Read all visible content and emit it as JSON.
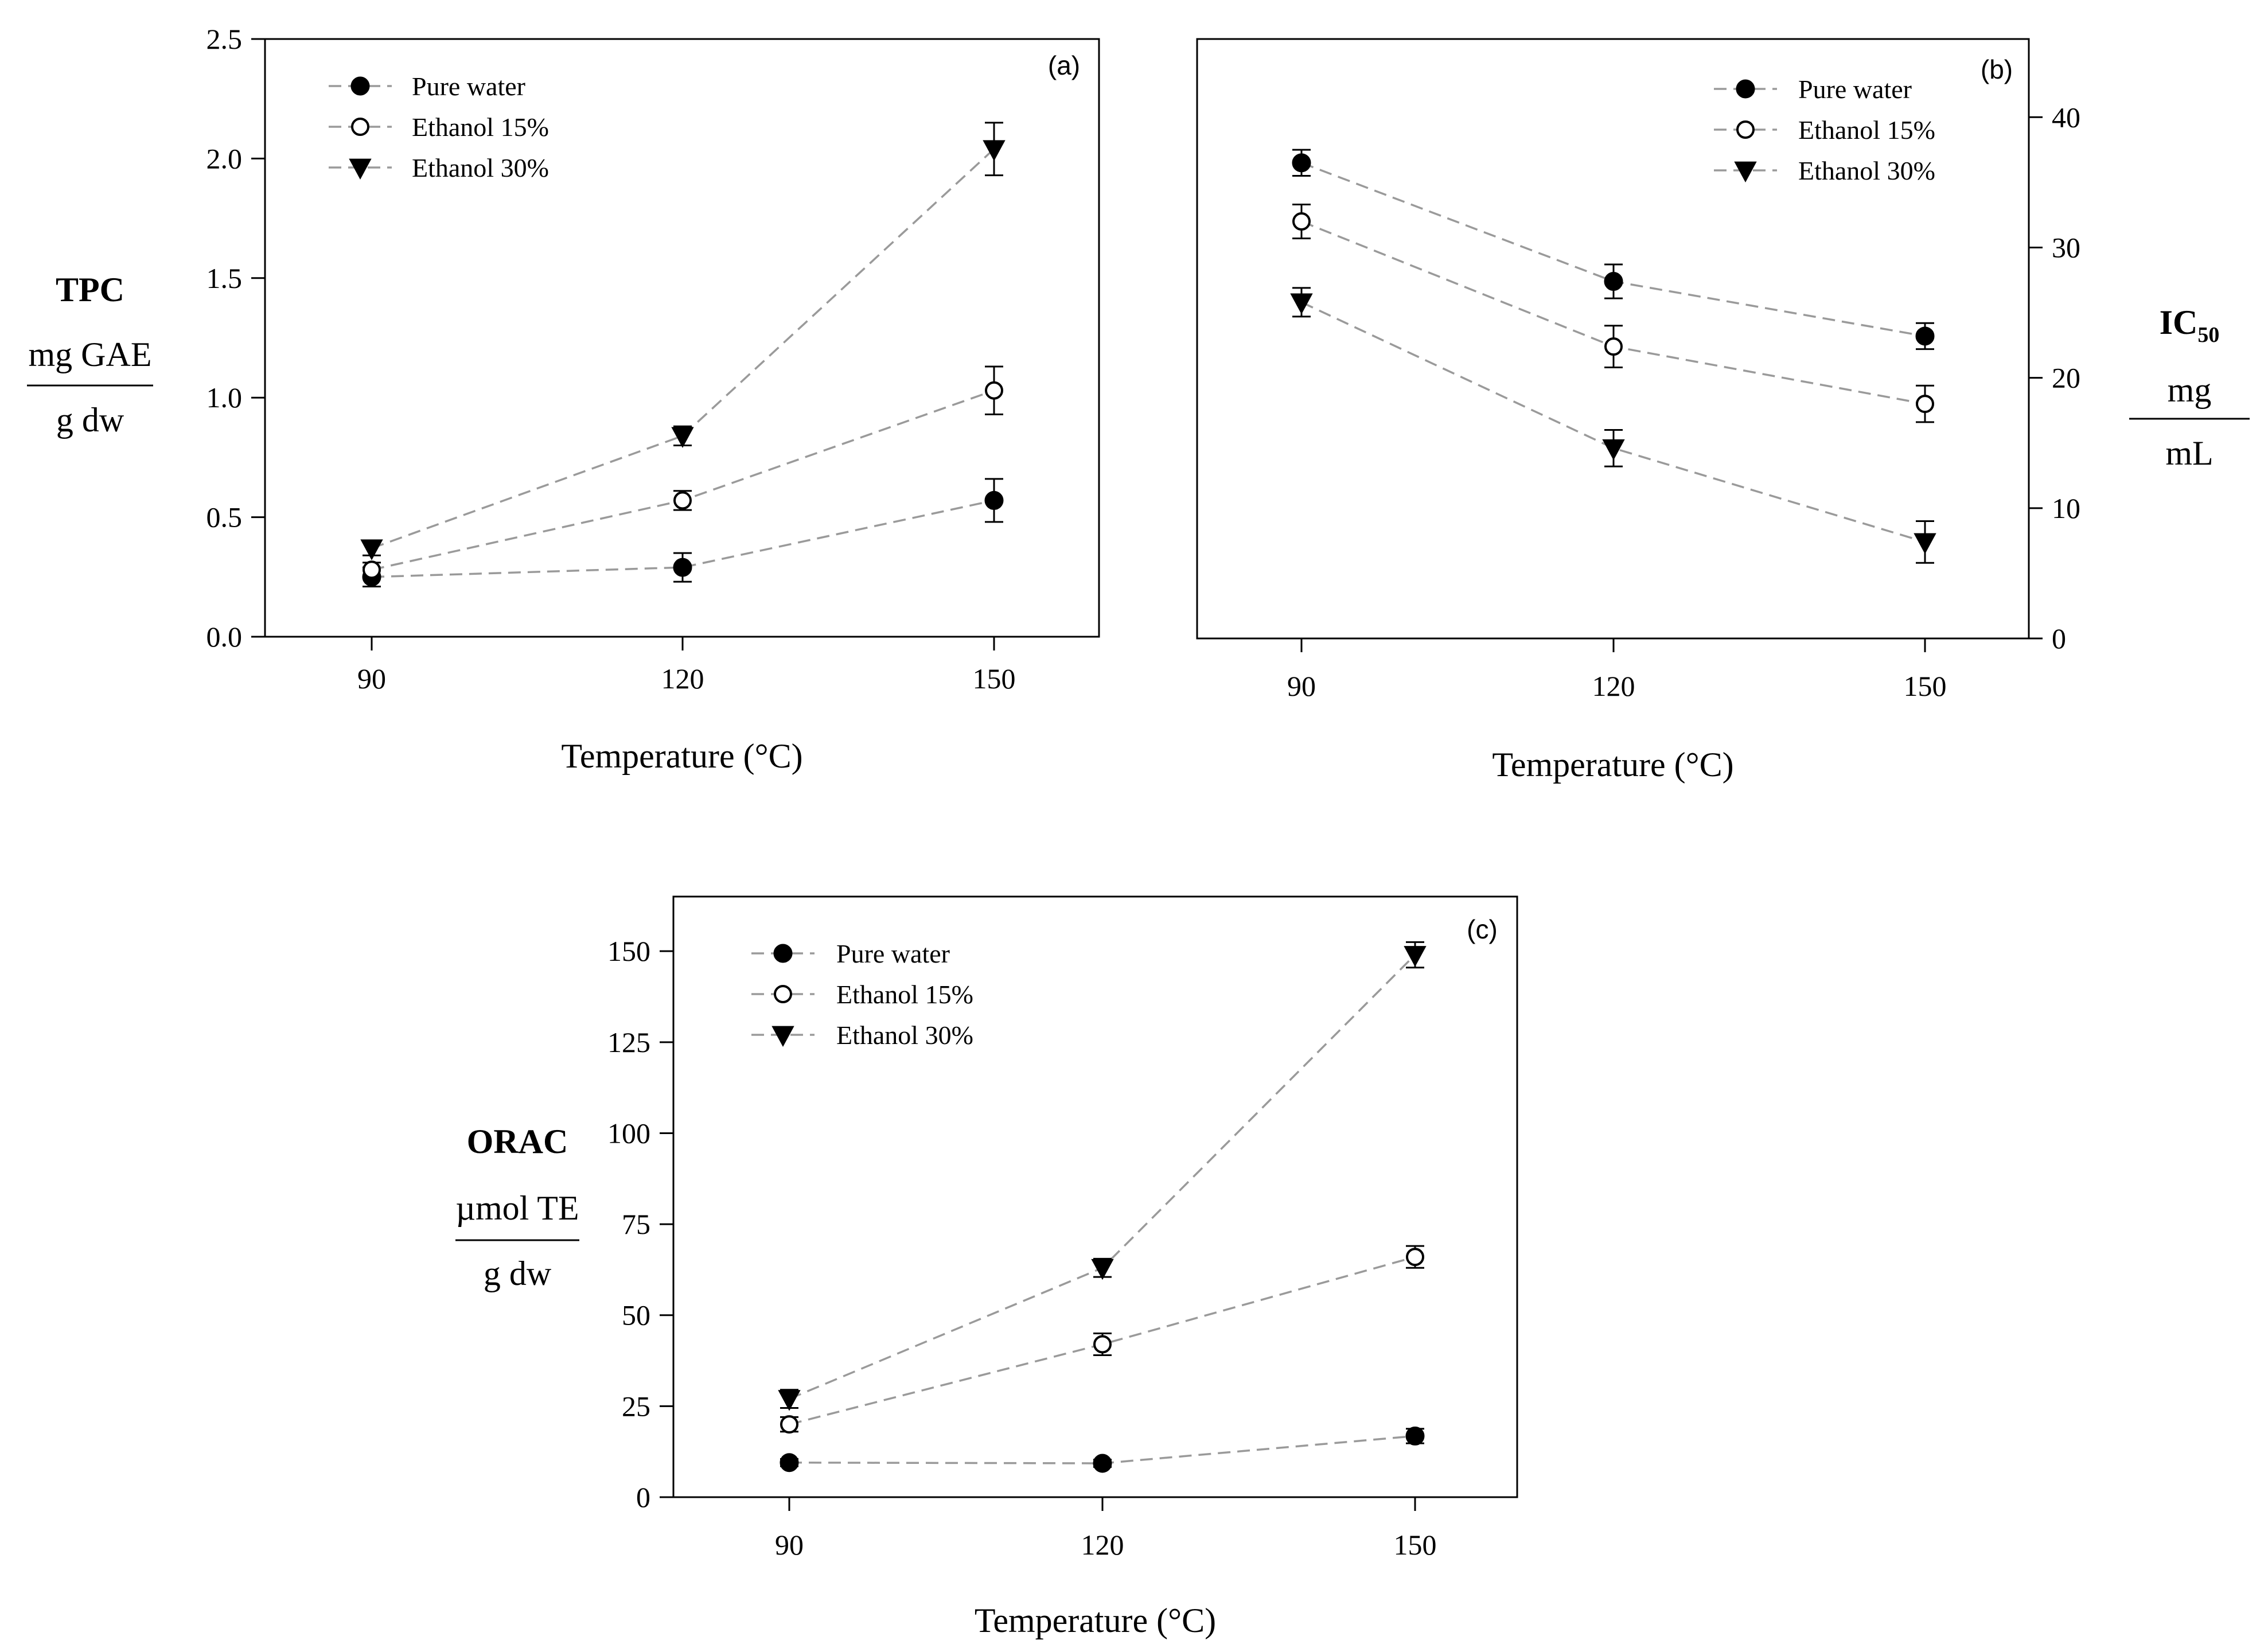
{
  "chart_data": [
    {
      "type": "line",
      "panel_label": "(a)",
      "title": "",
      "xlabel": "Temperature (°C)",
      "ylabel": {
        "top": "TPC",
        "numerator": "mg GAE",
        "denominator": "g dw"
      },
      "x": [
        90,
        120,
        150
      ],
      "xticks": [
        "90",
        "120",
        "150"
      ],
      "xlim": [
        80,
        160
      ],
      "ylim": [
        0,
        2.5
      ],
      "yticks": [
        "0.0",
        "0.5",
        "1.0",
        "1.5",
        "2.0",
        "2.5"
      ],
      "y_axis_side": "left",
      "legend_placement": "top-left",
      "series": [
        {
          "name": "Pure water",
          "marker": "filled-circle",
          "values": [
            0.25,
            0.29,
            0.57
          ],
          "errors": [
            0.04,
            0.06,
            0.09
          ]
        },
        {
          "name": "Ethanol 15%",
          "marker": "open-circle",
          "values": [
            0.28,
            0.57,
            1.03
          ],
          "errors": [
            0.03,
            0.04,
            0.1
          ]
        },
        {
          "name": "Ethanol 30%",
          "marker": "filled-triangle-down",
          "values": [
            0.37,
            0.84,
            2.04
          ],
          "errors": [
            0.03,
            0.04,
            0.11
          ]
        }
      ]
    },
    {
      "type": "line",
      "panel_label": "(b)",
      "title": "",
      "xlabel": "Temperature (°C)",
      "ylabel": {
        "top": "IC",
        "top_sub": "50",
        "numerator": "mg",
        "denominator": "mL"
      },
      "x": [
        90,
        120,
        150
      ],
      "xticks": [
        "90",
        "120",
        "150"
      ],
      "xlim": [
        80,
        160
      ],
      "ylim": [
        0,
        46
      ],
      "yticks": [
        "0",
        "10",
        "20",
        "30",
        "40"
      ],
      "y_axis_side": "right",
      "legend_placement": "top-right",
      "series": [
        {
          "name": "Pure water",
          "marker": "filled-circle",
          "values": [
            36.5,
            27.4,
            23.2
          ],
          "errors": [
            1.0,
            1.3,
            1.0
          ]
        },
        {
          "name": "Ethanol 15%",
          "marker": "open-circle",
          "values": [
            32.0,
            22.4,
            18.0
          ],
          "errors": [
            1.3,
            1.6,
            1.4
          ]
        },
        {
          "name": "Ethanol 30%",
          "marker": "filled-triangle-down",
          "values": [
            25.8,
            14.6,
            7.4
          ],
          "errors": [
            1.1,
            1.4,
            1.6
          ]
        }
      ]
    },
    {
      "type": "line",
      "panel_label": "(c)",
      "title": "",
      "xlabel": "Temperature (°C)",
      "ylabel": {
        "top": "ORAC",
        "numerator": "µmol TE",
        "denominator": "g dw"
      },
      "x": [
        90,
        120,
        150
      ],
      "xticks": [
        "90",
        "120",
        "150"
      ],
      "xlim": [
        80,
        160
      ],
      "ylim": [
        0,
        165
      ],
      "yticks": [
        "0",
        "25",
        "50",
        "75",
        "100",
        "125",
        "150"
      ],
      "y_axis_side": "left",
      "legend_placement": "top-left",
      "series": [
        {
          "name": "Pure water",
          "marker": "filled-circle",
          "values": [
            9.5,
            9.3,
            16.8
          ],
          "errors": [
            1.0,
            1.0,
            2.0
          ]
        },
        {
          "name": "Ethanol 15%",
          "marker": "open-circle",
          "values": [
            20.0,
            42.0,
            66.0
          ],
          "errors": [
            2.0,
            3.0,
            3.0
          ]
        },
        {
          "name": "Ethanol 30%",
          "marker": "filled-triangle-down",
          "values": [
            27.0,
            63.0,
            149.0
          ],
          "errors": [
            2.5,
            2.5,
            3.5
          ]
        }
      ]
    }
  ]
}
